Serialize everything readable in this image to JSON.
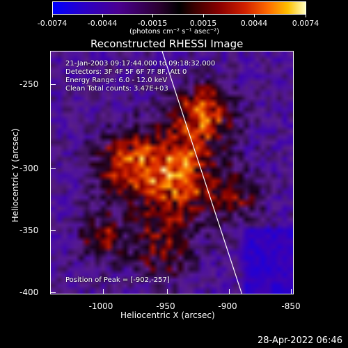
{
  "colorbar": {
    "tick_labels": [
      "-0.0074",
      "-0.0044",
      "-0.0015",
      "0.0015",
      "0.0044",
      "0.0074"
    ],
    "units": "(photons cm⁻² s⁻¹ asec⁻²)"
  },
  "title": "Reconstructed RHESSI Image",
  "info": {
    "time": "21-Jan-2003 09:17:44.000 to 09:18:32.000",
    "detectors": "Detectors: 3F 4F 5F 6F 7F 8F, Att 0",
    "energy": "Energy Range: 6.0 - 12.0 keV",
    "method": "Clean     Total counts: 3.47E+03",
    "peak": "Position of Peak = [-902,-257]"
  },
  "axes": {
    "xlabel": "Heliocentric X (arcsec)",
    "ylabel": "Heliocentric Y (arcsec)",
    "x_ticks": [
      "-1000",
      "-950",
      "-900",
      "-850"
    ],
    "y_ticks": [
      "-250",
      "-300",
      "-350",
      "-400"
    ]
  },
  "footer": {
    "date": "28-Apr-2022 06:46"
  }
}
